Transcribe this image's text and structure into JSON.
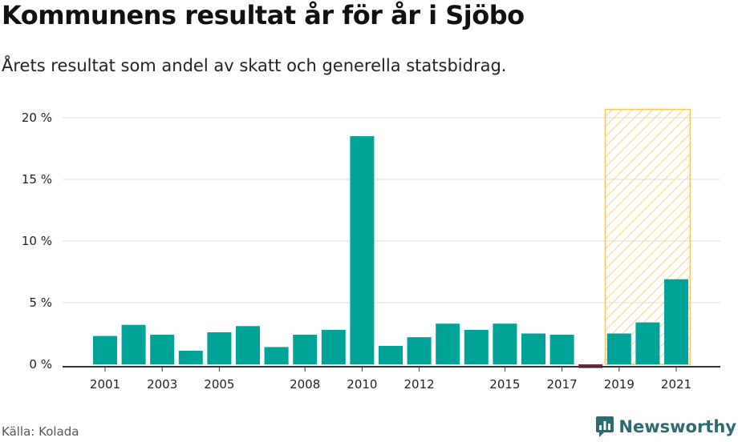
{
  "header": {
    "title": "Kommunens resultat år för år i Sjöbo",
    "subtitle": "Årets resultat som andel av skatt och generella statsbidrag."
  },
  "footer": {
    "source": "Källa: Kolada",
    "brand": "Newsworthy"
  },
  "colors": {
    "positive": "#00a397",
    "negative": "#8c1b3c",
    "highlight_stripe": "#fbd787",
    "highlight_border": "#f7c860",
    "grid": "#dddddd",
    "axis": "#333333",
    "brand": "#2e6a73"
  },
  "chart_data": {
    "type": "bar",
    "title": "Kommunens resultat år för år i Sjöbo",
    "subtitle": "Årets resultat som andel av skatt och generella statsbidrag.",
    "xlabel": "",
    "ylabel": "",
    "ylim": [
      0,
      21
    ],
    "y_ticks": [
      0,
      5,
      10,
      15,
      20
    ],
    "y_tick_labels": [
      "0 %",
      "5 %",
      "10 %",
      "15 %",
      "20 %"
    ],
    "grid": true,
    "categories": [
      "2001",
      "2002",
      "2003",
      "2004",
      "2005",
      "2006",
      "2007",
      "2008",
      "2009",
      "2010",
      "2011",
      "2012",
      "2013",
      "2014",
      "2015",
      "2016",
      "2017",
      "2018",
      "2019",
      "2020",
      "2021"
    ],
    "values": [
      2.3,
      3.2,
      2.4,
      1.1,
      2.6,
      3.1,
      1.4,
      2.4,
      2.8,
      18.5,
      1.5,
      2.2,
      3.3,
      2.8,
      3.3,
      2.5,
      2.4,
      -0.3,
      2.5,
      3.4,
      6.9
    ],
    "x_tick_labels": [
      "2001",
      "2003",
      "2005",
      "2008",
      "2010",
      "2012",
      "2015",
      "2017",
      "2019",
      "2021"
    ],
    "highlight_range": [
      "2019",
      "2021"
    ]
  }
}
